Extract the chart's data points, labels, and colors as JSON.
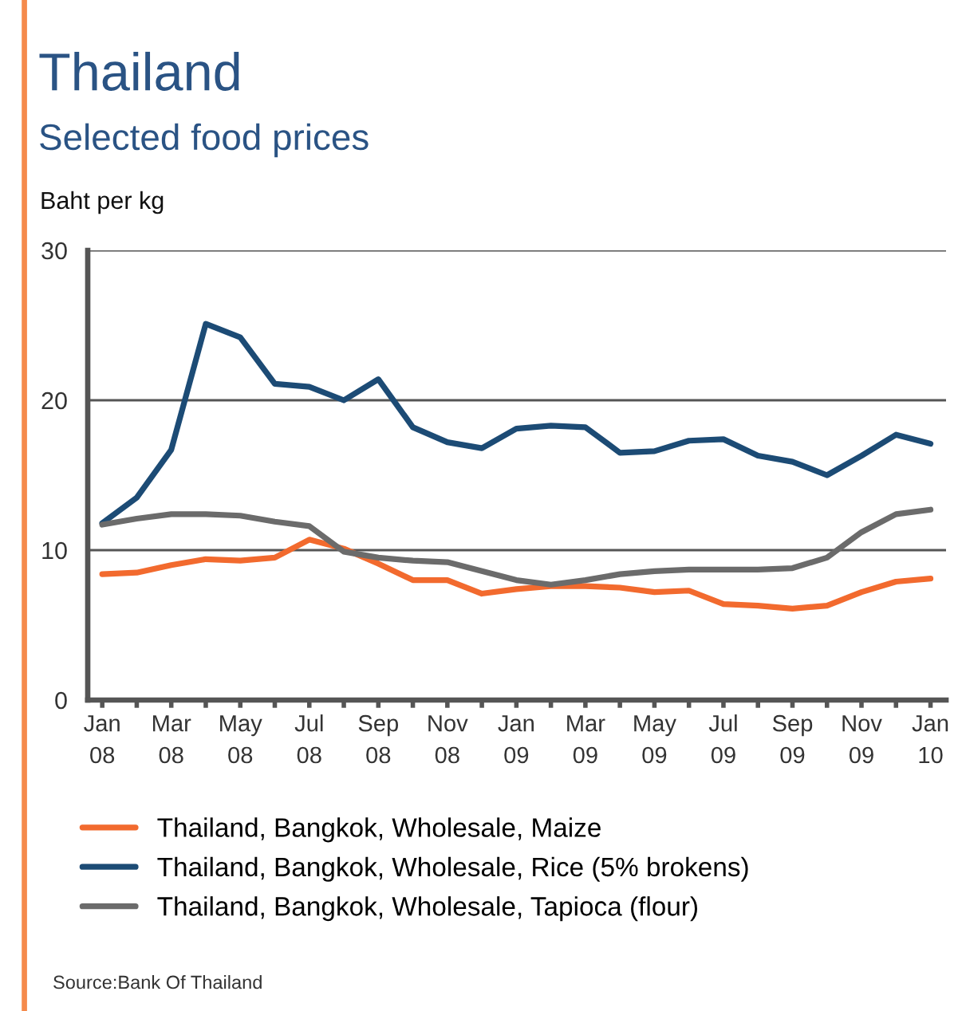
{
  "chart_data": {
    "type": "line",
    "title": "Thailand",
    "subtitle": "Selected food prices",
    "ylabel": "Baht per kg",
    "categories": [
      "Jan\n08",
      null,
      "Mar\n08",
      null,
      "May\n08",
      null,
      "Jul\n08",
      null,
      "Sep\n08",
      null,
      "Nov\n08",
      null,
      "Jan\n09",
      null,
      "Mar\n09",
      null,
      "May\n09",
      null,
      "Jul\n09",
      null,
      "Sep\n09",
      null,
      "Nov\n09",
      null,
      "Jan\n10"
    ],
    "series": [
      {
        "name": "Thailand, Bangkok, Wholesale, Maize",
        "color": "#f26a2e",
        "values": [
          8.4,
          8.5,
          9.0,
          9.4,
          9.3,
          9.5,
          10.7,
          10.1,
          9.1,
          8.0,
          8.0,
          7.1,
          7.4,
          7.6,
          7.6,
          7.5,
          7.2,
          7.3,
          6.4,
          6.3,
          6.1,
          6.3,
          7.2,
          7.9,
          8.1
        ]
      },
      {
        "name": "Thailand, Bangkok, Wholesale, Rice (5% brokens)",
        "color": "#1c4b75",
        "values": [
          11.8,
          13.5,
          16.7,
          25.1,
          24.2,
          21.1,
          20.9,
          20.0,
          21.4,
          18.2,
          17.2,
          16.8,
          18.1,
          18.3,
          18.2,
          16.5,
          16.6,
          17.3,
          17.4,
          16.3,
          15.9,
          15.0,
          16.3,
          17.7,
          17.1
        ]
      },
      {
        "name": "Thailand, Bangkok, Wholesale, Tapioca (flour)",
        "color": "#6b6b6b",
        "values": [
          11.7,
          12.1,
          12.4,
          12.4,
          12.3,
          11.9,
          11.6,
          9.9,
          9.5,
          9.3,
          9.2,
          8.6,
          8.0,
          7.7,
          8.0,
          8.4,
          8.6,
          8.7,
          8.7,
          8.7,
          8.8,
          9.5,
          11.2,
          12.4,
          12.7
        ]
      }
    ],
    "ylim": [
      0,
      30
    ],
    "yticks": [
      0,
      10,
      20,
      30
    ],
    "grid": "y",
    "legend": "bottom",
    "line_style": "solid",
    "annotations": [
      "Source:Bank Of Thailand"
    ]
  }
}
